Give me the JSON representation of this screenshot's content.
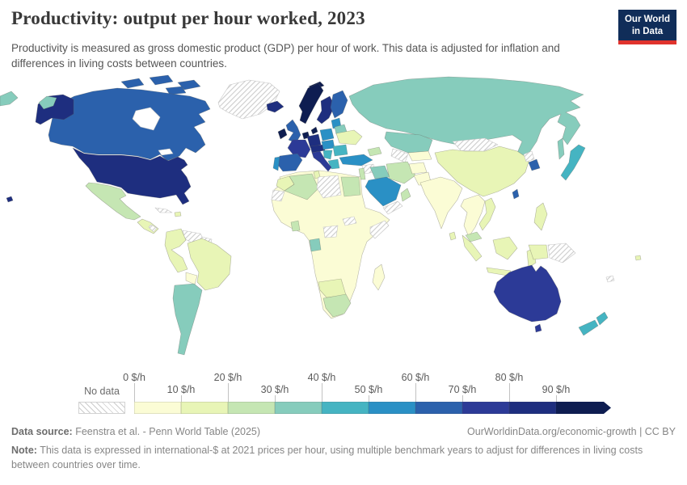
{
  "header": {
    "title": "Productivity: output per hour worked, 2023",
    "subtitle": "Productivity is measured as gross domestic product (GDP) per hour of work. This data is adjusted for inflation and differences in living costs between countries.",
    "logo": {
      "line1": "Our World",
      "line2": "in Data",
      "bg_color": "#102d59",
      "accent_color": "#e0332d"
    }
  },
  "legend": {
    "no_data_label": "No data",
    "colors": [
      "#fbfcd5",
      "#e8f5b6",
      "#c5e6b3",
      "#86ccbc",
      "#45b4c2",
      "#2a90c5",
      "#2b61ac",
      "#2c3a97",
      "#1e2e7f",
      "#0e1d51"
    ],
    "ticks": [
      {
        "label": "0 $/h",
        "row": "top"
      },
      {
        "label": "10 $/h",
        "row": "bottom"
      },
      {
        "label": "20 $/h",
        "row": "top"
      },
      {
        "label": "30 $/h",
        "row": "bottom"
      },
      {
        "label": "40 $/h",
        "row": "top"
      },
      {
        "label": "50 $/h",
        "row": "bottom"
      },
      {
        "label": "60 $/h",
        "row": "top"
      },
      {
        "label": "70 $/h",
        "row": "bottom"
      },
      {
        "label": "80 $/h",
        "row": "top"
      },
      {
        "label": "90 $/h",
        "row": "bottom"
      }
    ]
  },
  "chart_data": {
    "type": "choropleth",
    "title": "Productivity: output per hour worked, 2023",
    "unit": "international-$ per hour (2021 prices)",
    "bin_edges": [
      0,
      10,
      20,
      30,
      40,
      50,
      60,
      70,
      80,
      90
    ],
    "bin_labels": [
      "0 $/h",
      "10 $/h",
      "20 $/h",
      "30 $/h",
      "40 $/h",
      "50 $/h",
      "60 $/h",
      "70 $/h",
      "80 $/h",
      "90 $/h"
    ],
    "open_top_bin": true,
    "no_data_key": "nd",
    "regions": {
      "greenland": "nd",
      "canada": 6,
      "usa": 8,
      "mexico": 2,
      "central-america": 1,
      "nicaragua": "nd",
      "cuba": "nd",
      "hispaniola": 1,
      "venezuela": "nd",
      "guyana": "nd",
      "colombia-peru": 1,
      "brazil": 1,
      "bolivia": 0,
      "argentina-chile": 3,
      "iceland": 8,
      "norway": 9,
      "sweden": 8,
      "finland": 6,
      "denmark": 9,
      "uk": 6,
      "ireland": 9,
      "benelux": 9,
      "germany": 8,
      "france": 7,
      "alpine": 8,
      "poland": 5,
      "baltics": 5,
      "belarus": 3,
      "ukraine": 1,
      "czech-hungary": 5,
      "romania-bulgaria": 4,
      "balkans": 4,
      "greece": 4,
      "italy": 7,
      "spain": 6,
      "portugal": 5,
      "russia": 3,
      "kazakhstan": 3,
      "central-asia": 0,
      "turkmenistan": "nd",
      "caucasus": 2,
      "turkey": 5,
      "syria": "nd",
      "levant": 2,
      "iraq": 3,
      "iran": 2,
      "saudi-arabia": 5,
      "yemen": "nd",
      "oman": 2,
      "afghanistan": 0,
      "pakistan": 0,
      "india": 0,
      "sri-lanka": 1,
      "china": 1,
      "mongolia": "nd",
      "north-korea": "nd",
      "south-korea": 6,
      "japan": 4,
      "taiwan": 6,
      "philippines": 1,
      "se-asia": 0,
      "vietnam": 1,
      "malaysia": 2,
      "indonesia": 1,
      "papua-new-guinea": "nd",
      "africa": 0,
      "morocco": 1,
      "algeria": 2,
      "tunisia": 1,
      "libya": "nd",
      "egypt": 2,
      "western-sahara": "nd",
      "ghana": 2,
      "gabon": 3,
      "south-sudan": "nd",
      "eritrea": "nd",
      "somalia": "nd",
      "namibia-botswana": 1,
      "south-africa": 2,
      "madagascar": 0,
      "australia": 7,
      "new-zealand": 4,
      "new-caledonia": "nd",
      "fiji": 1
    }
  },
  "footer": {
    "source_label": "Data source:",
    "source_text": "Feenstra et al. - Penn World Table (2025)",
    "link_text": "OurWorldinData.org/economic-growth | CC BY",
    "note_label": "Note:",
    "note_text": "This data is expressed in international-$ at 2021 prices per hour, using multiple benchmark years to adjust for differences in living costs between countries over time."
  }
}
